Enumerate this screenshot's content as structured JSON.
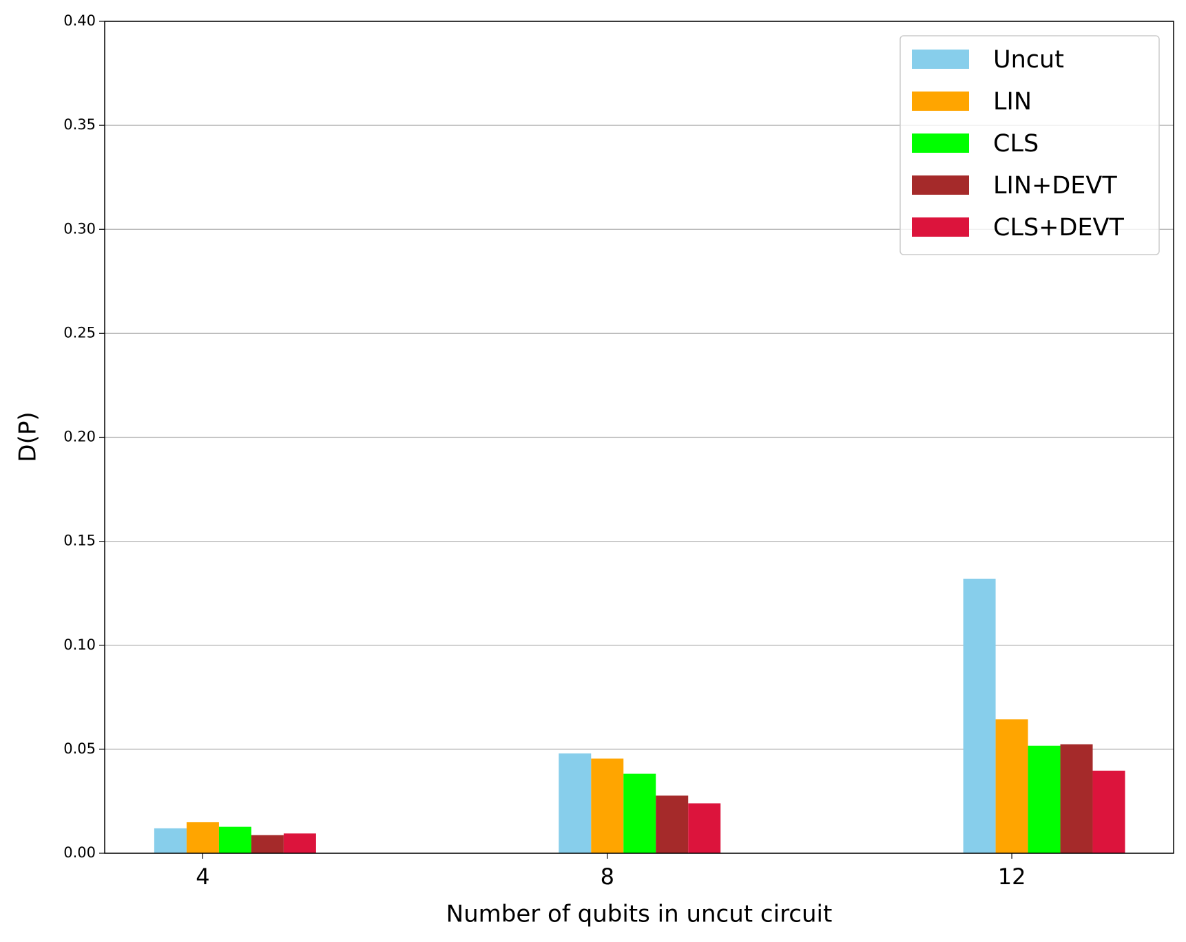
{
  "chart_data": {
    "type": "bar",
    "x_label": "Number of qubits in uncut circuit",
    "y_label": "D(P)",
    "x": [
      4,
      8,
      12
    ],
    "series": [
      {
        "name": "Uncut",
        "color": "#87ceeb",
        "values": [
          0.012,
          0.048,
          0.132
        ]
      },
      {
        "name": "LIN",
        "color": "#ffa500",
        "values": [
          0.0149,
          0.0455,
          0.0644
        ]
      },
      {
        "name": "CLS",
        "color": "#00ff00",
        "values": [
          0.0127,
          0.0382,
          0.0517
        ]
      },
      {
        "name": "LIN+DEVT",
        "color": "#a52a2a",
        "values": [
          0.0087,
          0.0277,
          0.0524
        ]
      },
      {
        "name": "CLS+DEVT",
        "color": "#dc143c",
        "values": [
          0.0095,
          0.024,
          0.0397
        ]
      }
    ],
    "xlim": [
      3.03,
      13.6
    ],
    "ylim": [
      0,
      0.4
    ],
    "xticks": [
      4,
      8,
      12
    ],
    "yticks": [
      {
        "value": 0,
        "label": "0.00"
      },
      {
        "value": 0.05,
        "label": "0.05"
      },
      {
        "value": 0.1,
        "label": "0.10"
      },
      {
        "value": 0.15,
        "label": "0.15"
      },
      {
        "value": 0.2,
        "label": "0.20"
      },
      {
        "value": 0.25,
        "label": "0.25"
      },
      {
        "value": 0.3,
        "label": "0.30"
      },
      {
        "value": 0.35,
        "label": "0.35"
      },
      {
        "value": 0.4,
        "label": "0.40"
      }
    ],
    "grid": "y",
    "legend": "upper right"
  }
}
